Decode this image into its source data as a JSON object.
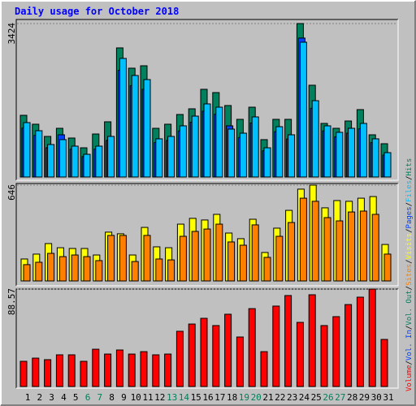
{
  "chart_data": [
    {
      "type": "bar",
      "title": "Daily usage for October 2018",
      "ylim": [
        0,
        3424
      ],
      "yticks": [
        3424
      ],
      "grid": true,
      "series": [
        {
          "name": "Hits",
          "color": "#00805c",
          "values": [
            1377,
            1178,
            906,
            1087,
            870,
            652,
            960,
            1232,
            2881,
            2428,
            2482,
            1087,
            1178,
            1395,
            1522,
            1957,
            1884,
            1595,
            1287,
            1558,
            834,
            1287,
            1287,
            3424,
            2048,
            1196,
            1087,
            1250,
            1504,
            942,
            743
          ]
        },
        {
          "name": "Pages",
          "color": "#0040ff",
          "values": [
            1093,
            930,
            653,
            942,
            620,
            456,
            620,
            815,
            2381,
            2039,
            1957,
            767,
            815,
            1028,
            1223,
            1468,
            1402,
            1142,
            880,
            1207,
            587,
            1011,
            848,
            3100,
            1533,
            1028,
            897,
            978,
            1076,
            767,
            490
          ]
        },
        {
          "name": "Files",
          "color": "#00c0ff",
          "values": [
            1214,
            1033,
            725,
            834,
            689,
            507,
            689,
            906,
            2646,
            2265,
            2174,
            852,
            906,
            1142,
            1359,
            1631,
            1558,
            1069,
            978,
            1341,
            652,
            1123,
            942,
            3008,
            1703,
            1142,
            997,
            1087,
            1196,
            852,
            544
          ]
        }
      ]
    },
    {
      "type": "bar",
      "ylim": [
        0,
        646
      ],
      "yticks": [
        646
      ],
      "grid": true,
      "series": [
        {
          "name": "Visits",
          "color": "#ffff00",
          "values": [
            148,
            181,
            252,
            224,
            219,
            219,
            175,
            329,
            318,
            175,
            361,
            230,
            224,
            383,
            422,
            411,
            449,
            323,
            285,
            416,
            192,
            356,
            476,
            619,
            646,
            493,
            542,
            537,
            558,
            569,
            246
          ]
        },
        {
          "name": "Sites",
          "color": "#ff8000",
          "values": [
            110,
            126,
            186,
            164,
            175,
            164,
            137,
            307,
            307,
            131,
            307,
            148,
            142,
            301,
            334,
            350,
            383,
            263,
            241,
            378,
            159,
            301,
            394,
            558,
            537,
            427,
            405,
            465,
            471,
            449,
            181
          ]
        }
      ]
    },
    {
      "type": "bar",
      "ylim": [
        0,
        88.57
      ],
      "yticks": [
        88.57
      ],
      "grid": true,
      "series": [
        {
          "name": "Volume",
          "color": "#ff0000",
          "values": [
            22.9,
            25.8,
            24.4,
            28.8,
            28.8,
            22.9,
            33.9,
            29.5,
            33.2,
            29.5,
            31.7,
            28.8,
            29.5,
            50.2,
            56.8,
            62.0,
            55.4,
            65.7,
            45.0,
            70.8,
            31.7,
            73.1,
            82.7,
            58.3,
            83.4,
            55.4,
            63.5,
            74.5,
            81.2,
            88.57,
            42.8
          ]
        }
      ],
      "legend": [
        {
          "name": "Vol. In",
          "color": "#0040ff"
        },
        {
          "name": "Vol. Out",
          "color": "#00805c"
        }
      ],
      "legend_separator": "/",
      "categories": [
        "1",
        "2",
        "3",
        "4",
        "5",
        "6",
        "7",
        "8",
        "9",
        "10",
        "11",
        "12",
        "13",
        "14",
        "15",
        "16",
        "17",
        "18",
        "19",
        "20",
        "21",
        "22",
        "23",
        "24",
        "25",
        "26",
        "27",
        "28",
        "29",
        "30",
        "31"
      ],
      "category_colors": [
        "#000000",
        "#000000",
        "#000000",
        "#000000",
        "#000000",
        "#00805c",
        "#00805c",
        "#000000",
        "#000000",
        "#000000",
        "#000000",
        "#000000",
        "#00805c",
        "#00805c",
        "#000000",
        "#000000",
        "#000000",
        "#000000",
        "#00805c",
        "#00805c",
        "#000000",
        "#000000",
        "#000000",
        "#000000",
        "#000000",
        "#00805c",
        "#00805c",
        "#000000",
        "#000000",
        "#000000",
        "#000000"
      ]
    }
  ]
}
